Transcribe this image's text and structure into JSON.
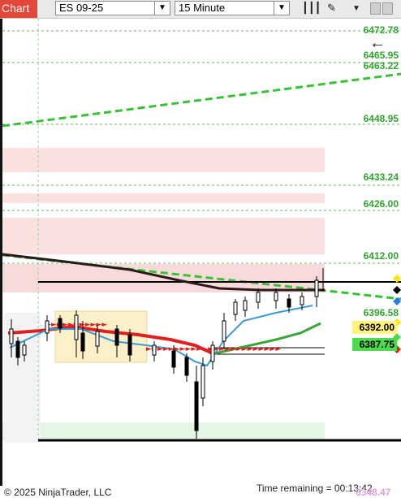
{
  "window": {
    "tab_label": "Chart"
  },
  "toolbar": {
    "instrument": "ES 09-25",
    "interval": "15 Minute",
    "icons": [
      "bar-type-icon",
      "drawing-tool-icon",
      "dropdown-icon",
      "window-icon"
    ]
  },
  "colors": {
    "accent": "#e2483a",
    "price_green": "#2fa52f",
    "ema_red": "#e02020",
    "sma_blue": "#3a9ad9",
    "sma_green": "#3aa53a",
    "zone_pink": "#fbe0e0",
    "zone_green": "#e4f6e4",
    "zone_yellow": "#fbf0c8"
  },
  "price_axis": {
    "labels": [
      {
        "value": "6472.78"
      },
      {
        "value": "6465.95"
      },
      {
        "value": "6463.22"
      },
      {
        "value": "6448.95"
      },
      {
        "value": "6433.24"
      },
      {
        "value": "6426.00"
      },
      {
        "value": "6412.00"
      },
      {
        "value": "6396.58"
      }
    ],
    "boxes": [
      {
        "value": "6392.00",
        "bg": "#fff27a"
      },
      {
        "value": "6387.75",
        "bg": "#4ddb4d"
      }
    ]
  },
  "footer": {
    "copyright": "© 2025 NinjaTrader, LLC",
    "time_remaining": "Time remaining = 00:13:42",
    "ghost_price": "6348.47"
  }
}
